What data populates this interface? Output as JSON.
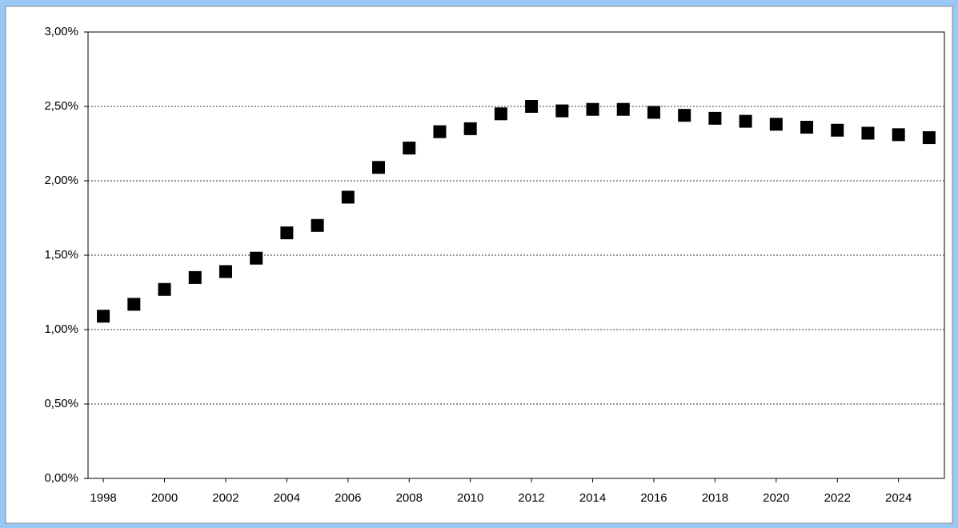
{
  "chart_data": {
    "type": "scatter",
    "x": [
      1998,
      1999,
      2000,
      2001,
      2002,
      2003,
      2004,
      2005,
      2006,
      2007,
      2008,
      2009,
      2010,
      2011,
      2012,
      2013,
      2014,
      2015,
      2016,
      2017,
      2018,
      2019,
      2020,
      2021,
      2022,
      2023,
      2024,
      2025
    ],
    "values": [
      1.09,
      1.17,
      1.27,
      1.35,
      1.39,
      1.48,
      1.65,
      1.7,
      1.89,
      2.09,
      2.22,
      2.33,
      2.35,
      2.45,
      2.5,
      2.47,
      2.48,
      2.48,
      2.46,
      2.44,
      2.42,
      2.4,
      2.38,
      2.36,
      2.34,
      2.32,
      2.31,
      2.29
    ],
    "color": "#000000",
    "xlim": [
      1997.5,
      2025.5
    ],
    "xticks": [
      1998,
      2000,
      2002,
      2004,
      2006,
      2008,
      2010,
      2012,
      2014,
      2016,
      2018,
      2020,
      2022,
      2024
    ],
    "ylim": [
      0,
      3
    ],
    "yticks": [
      {
        "value": 0,
        "label": "0,00%"
      },
      {
        "value": 0.5,
        "label": "0,50%"
      },
      {
        "value": 1,
        "label": "1,00%"
      },
      {
        "value": 1.5,
        "label": "1,50%"
      },
      {
        "value": 2,
        "label": "2,00%"
      },
      {
        "value": 2.5,
        "label": "2,50%"
      },
      {
        "value": 3,
        "label": "3,00%"
      }
    ],
    "grid": true
  }
}
